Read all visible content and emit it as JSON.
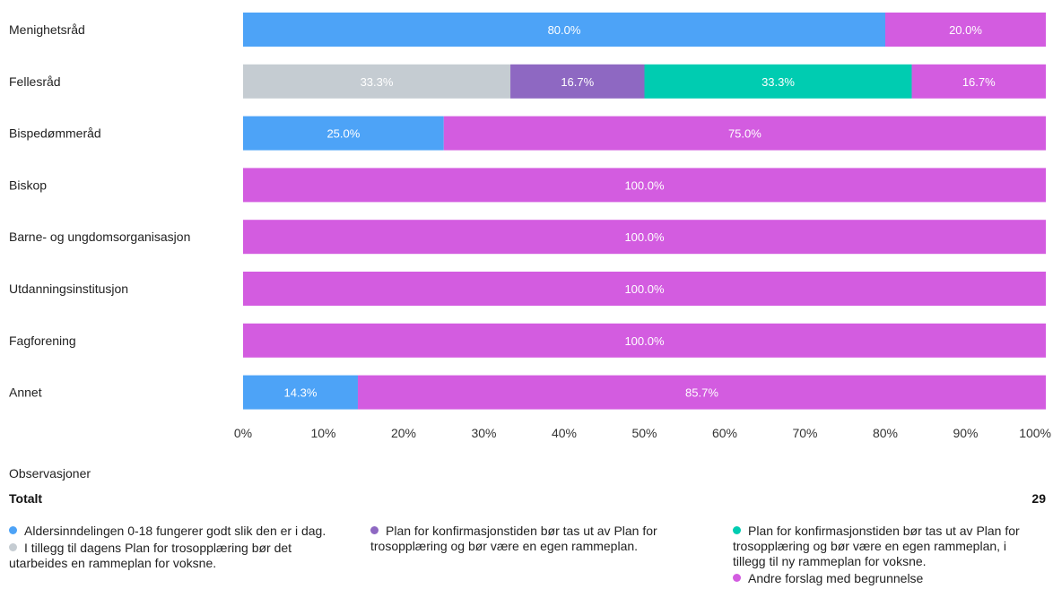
{
  "chart_data": {
    "type": "bar",
    "orientation": "horizontal",
    "stacked": true,
    "percent": true,
    "categories": [
      "Menighetsråd",
      "Fellesråd",
      "Bispedømmeråd",
      "Biskop",
      "Barne- og ungdomsorganisasjon",
      "Utdanningsinstitusjon",
      "Fagforening",
      "Annet"
    ],
    "series": [
      {
        "name": "Aldersinndelingen 0-18 fungerer godt slik den er i dag.",
        "color": "#4da3f7",
        "values": [
          80.0,
          0,
          25.0,
          0,
          0,
          0,
          0,
          14.3
        ]
      },
      {
        "name": "I tillegg til dagens Plan for trosopplæring bør det utarbeides en rammeplan for voksne.",
        "color": "#c5ccd2",
        "values": [
          0,
          33.3,
          0,
          0,
          0,
          0,
          0,
          0
        ]
      },
      {
        "name": "Plan for konfirmasjonstiden bør tas ut av Plan for trosopplæring og bør være en egen rammeplan.",
        "color": "#8e68c2",
        "values": [
          0,
          16.7,
          0,
          0,
          0,
          0,
          0,
          0
        ]
      },
      {
        "name": "Plan for konfirmasjonstiden bør tas ut av Plan for trosopplæring og bør være en egen rammeplan, i tillegg til ny rammeplan for voksne.",
        "color": "#00ccb1",
        "values": [
          0,
          33.3,
          0,
          0,
          0,
          0,
          0,
          0
        ]
      },
      {
        "name": "Andre forslag med begrunnelse",
        "color": "#d35ce0",
        "values": [
          20.0,
          16.7,
          75.0,
          100.0,
          100.0,
          100.0,
          100.0,
          85.7
        ]
      }
    ],
    "xlim": [
      0,
      100
    ],
    "x_ticks": [
      "0%",
      "10%",
      "20%",
      "30%",
      "40%",
      "50%",
      "60%",
      "70%",
      "80%",
      "90%",
      "100%"
    ],
    "legend_position": "bottom",
    "grid": false
  },
  "footer": {
    "observations_label": "Observasjoner",
    "total_label": "Totalt",
    "total_value": "29"
  },
  "legend_columns": [
    [
      0,
      1
    ],
    [
      2
    ],
    [
      3,
      4
    ]
  ]
}
